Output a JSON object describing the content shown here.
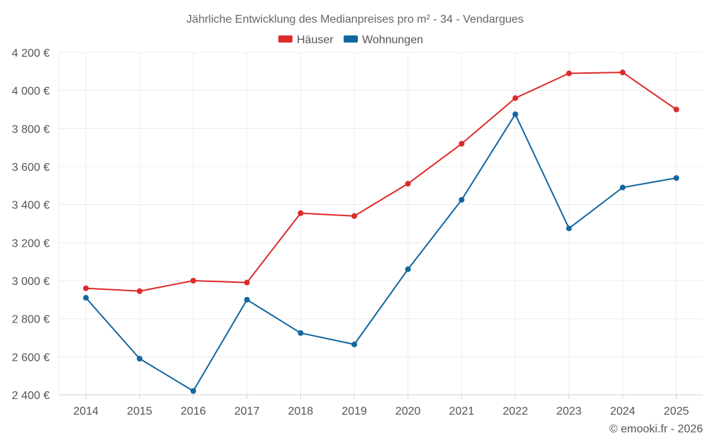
{
  "chart_data": {
    "type": "line",
    "title": "Jährliche Entwicklung des Medianpreises pro m² - 34 - Vendargues",
    "categories": [
      "2014",
      "2015",
      "2016",
      "2017",
      "2018",
      "2019",
      "2020",
      "2021",
      "2022",
      "2023",
      "2024",
      "2025"
    ],
    "series": [
      {
        "name": "Häuser",
        "color": "#dd2a2a",
        "values": [
          2960,
          2945,
          3000,
          2990,
          3355,
          3340,
          3510,
          3720,
          3960,
          4090,
          4095,
          3900
        ]
      },
      {
        "name": "Wohnungen",
        "color": "#1167a0",
        "values": [
          2910,
          2590,
          2420,
          2900,
          2725,
          2665,
          3060,
          3425,
          3875,
          3275,
          3490,
          3540
        ]
      }
    ],
    "ylim": [
      2400,
      4200
    ],
    "yticks": [
      2400,
      2600,
      2800,
      3000,
      3200,
      3400,
      3600,
      3800,
      4000,
      4200
    ],
    "ytick_labels": [
      "2 400 €",
      "2 600 €",
      "2 800 €",
      "3 000 €",
      "3 200 €",
      "3 400 €",
      "3 600 €",
      "3 800 €",
      "4 000 €",
      "4 200 €"
    ],
    "legend_position": "top-center",
    "grid": true,
    "credit": "© emooki.fr - 2026"
  }
}
